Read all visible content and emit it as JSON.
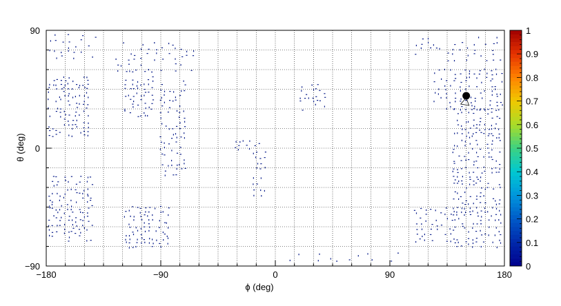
{
  "chart_data": {
    "type": "scatter",
    "title": "",
    "xlabel": "ϕ (deg)",
    "ylabel": "θ (deg)",
    "xlim": [
      -180,
      180
    ],
    "ylim": [
      -90,
      90
    ],
    "x_ticks": [
      {
        "value": -180,
        "label": "−180"
      },
      {
        "value": -90,
        "label": "−90"
      },
      {
        "value": 0,
        "label": "0"
      },
      {
        "value": 90,
        "label": "90"
      },
      {
        "value": 180,
        "label": "180"
      }
    ],
    "y_ticks": [
      {
        "value": 90,
        "label": "90"
      },
      {
        "value": 0,
        "label": "0"
      },
      {
        "value": -90,
        "label": "−90"
      }
    ],
    "grid": true,
    "grid_step_deg": 15,
    "point_color": "#0b1f8a",
    "colorbar": {
      "range": [
        0,
        1
      ],
      "ticks": [
        "0",
        "0.1",
        "0.2",
        "0.3",
        "0.4",
        "0.5",
        "0.6",
        "0.7",
        "0.8",
        "0.9",
        "1"
      ]
    },
    "highlight_point": {
      "x": 150,
      "y": 40
    },
    "clusters": [
      {
        "x": [
          -178,
          -140
        ],
        "y": [
          70,
          88
        ],
        "step": [
          5,
          4
        ]
      },
      {
        "x": [
          -125,
          -80
        ],
        "y": [
          60,
          82
        ],
        "step": [
          5,
          4
        ]
      },
      {
        "x": [
          -178,
          -148
        ],
        "y": [
          10,
          55
        ],
        "step": [
          3,
          3
        ]
      },
      {
        "x": [
          -178,
          -145
        ],
        "y": [
          -70,
          -20
        ],
        "step": [
          3,
          3
        ]
      },
      {
        "x": [
          -118,
          -95
        ],
        "y": [
          25,
          60
        ],
        "step": [
          3,
          3
        ]
      },
      {
        "x": [
          -90,
          -72
        ],
        "y": [
          -20,
          55
        ],
        "step": [
          3,
          4
        ]
      },
      {
        "x": [
          -118,
          -85
        ],
        "y": [
          -75,
          -45
        ],
        "step": [
          3,
          3
        ]
      },
      {
        "x": [
          -75,
          -60
        ],
        "y": [
          60,
          75
        ],
        "step": [
          5,
          5
        ]
      },
      {
        "x": [
          20,
          40
        ],
        "y": [
          30,
          50
        ],
        "step": [
          3,
          3
        ]
      },
      {
        "x": [
          -35,
          -12
        ],
        "y": [
          0,
          8
        ],
        "step": [
          3,
          3
        ]
      },
      {
        "x": [
          -18,
          -8
        ],
        "y": [
          -35,
          0
        ],
        "step": [
          3,
          4
        ]
      },
      {
        "x": [
          110,
          178
        ],
        "y": [
          68,
          85
        ],
        "step": [
          5,
          4
        ]
      },
      {
        "x": [
          125,
          178
        ],
        "y": [
          30,
          60
        ],
        "step": [
          4,
          3
        ]
      },
      {
        "x": [
          140,
          178
        ],
        "y": [
          -75,
          30
        ],
        "step": [
          3,
          3
        ]
      },
      {
        "x": [
          110,
          140
        ],
        "y": [
          -70,
          -45
        ],
        "step": [
          4,
          4
        ]
      },
      {
        "x": [
          10,
          100
        ],
        "y": [
          -85,
          -80
        ],
        "step": [
          8,
          4
        ]
      }
    ]
  }
}
